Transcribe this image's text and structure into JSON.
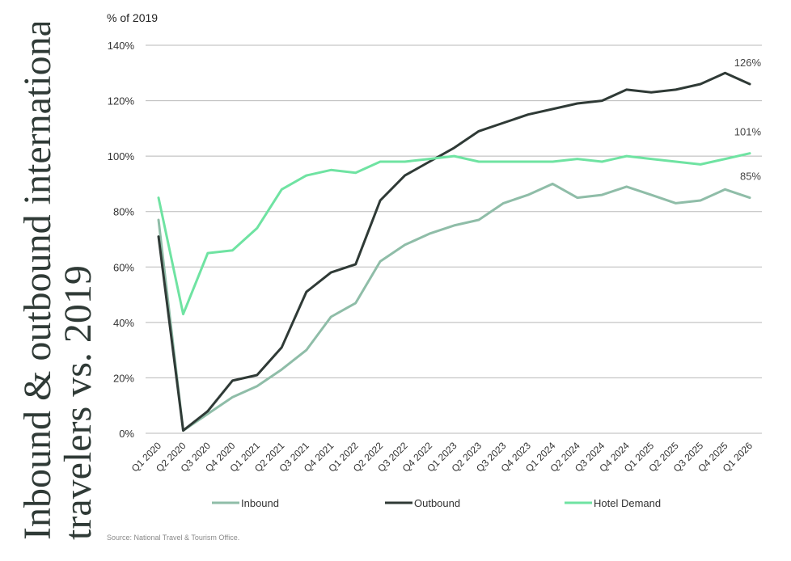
{
  "side_title": {
    "line1": "Inbound & outbound international",
    "line2": "travelers vs. 2019"
  },
  "y_unit_label": "% of 2019",
  "source": "Source: National Travel & Tourism Office.",
  "colors": {
    "inbound": "#8fbda8",
    "outbound": "#2f3a36",
    "hotel": "#6fe3a2",
    "grid": "#b8b8b8",
    "axis_text": "#333333"
  },
  "chart_data": {
    "type": "line",
    "ylabel": "% of 2019",
    "ylim": [
      0,
      140
    ],
    "yticks": [
      0,
      20,
      40,
      60,
      80,
      100,
      120,
      140
    ],
    "ytick_labels": [
      "0%",
      "20%",
      "40%",
      "60%",
      "80%",
      "100%",
      "120%",
      "140%"
    ],
    "grid": true,
    "legend_position": "bottom",
    "categories": [
      "Q1 2020",
      "Q2 2020",
      "Q3 2020",
      "Q4 2020",
      "Q1 2021",
      "Q2 2021",
      "Q3 2021",
      "Q4 2021",
      "Q1 2022",
      "Q2 2022",
      "Q3 2022",
      "Q4 2022",
      "Q1 2023",
      "Q2 2023",
      "Q3 2023",
      "Q4 2023",
      "Q1 2024",
      "Q2 2024",
      "Q3 2024",
      "Q4 2024",
      "Q1 2025",
      "Q2 2025",
      "Q3 2025",
      "Q4 2025",
      "Q1 2026"
    ],
    "series": [
      {
        "name": "Inbound",
        "color": "#8fbda8",
        "values": [
          77,
          1,
          7,
          13,
          17,
          23,
          30,
          42,
          47,
          62,
          68,
          72,
          75,
          77,
          83,
          86,
          90,
          85,
          86,
          89,
          86,
          83,
          84,
          88,
          85
        ],
        "end_label": "85%"
      },
      {
        "name": "Outbound",
        "color": "#2f3a36",
        "values": [
          71,
          1,
          8,
          19,
          21,
          31,
          51,
          58,
          61,
          84,
          93,
          98,
          103,
          109,
          112,
          115,
          117,
          119,
          120,
          124,
          123,
          124,
          126,
          130,
          126
        ],
        "end_label": "126%"
      },
      {
        "name": "Hotel Demand",
        "color": "#6fe3a2",
        "values": [
          85,
          43,
          65,
          66,
          74,
          88,
          93,
          95,
          94,
          98,
          98,
          99,
          100,
          98,
          98,
          98,
          98,
          99,
          98,
          100,
          99,
          98,
          97,
          99,
          101
        ],
        "end_label": "101%"
      }
    ]
  }
}
